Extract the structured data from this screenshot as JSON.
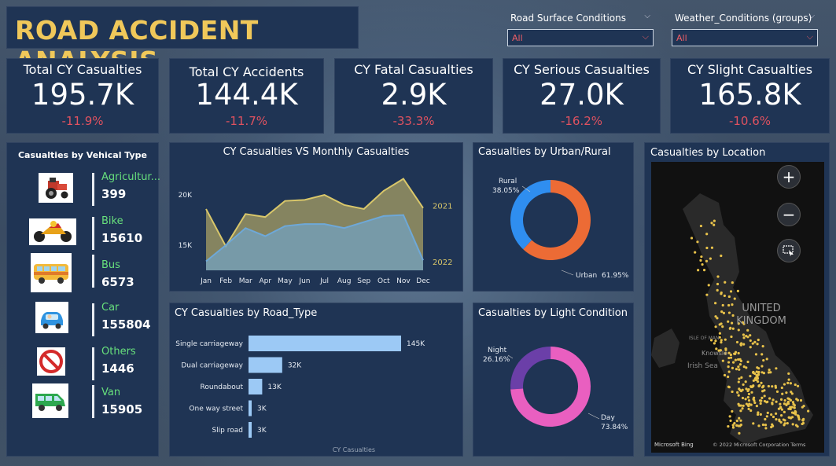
{
  "header": {
    "title": "ROAD ACCIDENT ANALYSIS"
  },
  "filters": [
    {
      "label": "Road Surface Conditions",
      "value": "All"
    },
    {
      "label": "Weather_Conditions (groups)",
      "value": "All"
    }
  ],
  "kpis": [
    {
      "title": "Total CY Casualties",
      "value": "195.7K",
      "delta": "-11.9%"
    },
    {
      "title": "Total CY Accidents",
      "value": "144.4K",
      "delta": "-11.7%"
    },
    {
      "title": "CY Fatal Casualties",
      "value": "2.9K",
      "delta": "-33.3%"
    },
    {
      "title": "CY Serious Casualties",
      "value": "27.0K",
      "delta": "-16.2%"
    },
    {
      "title": "CY Slight Casualties",
      "value": "165.8K",
      "delta": "-10.6%"
    }
  ],
  "vehicles": {
    "title": "Casualties by Vehical Type",
    "items": [
      {
        "name": "Agricultur...",
        "value": "399",
        "icon": "tractor-icon"
      },
      {
        "name": "Bike",
        "value": "15610",
        "icon": "motorbike-icon"
      },
      {
        "name": "Bus",
        "value": "6573",
        "icon": "bus-icon"
      },
      {
        "name": "Car",
        "value": "155804",
        "icon": "car-icon"
      },
      {
        "name": "Others",
        "value": "1446",
        "icon": "no-entry-icon"
      },
      {
        "name": "Van",
        "value": "15905",
        "icon": "van-icon"
      }
    ]
  },
  "map": {
    "title": "Casualties by Location",
    "labels": {
      "country": "UNITED KINGDOM",
      "sea_irish": "Irish Sea",
      "isle_of_man": "ISLE OF MAN",
      "knowsley": "Knowsle",
      "attribution": "© 2022 Microsoft Corporation  Terms",
      "brand": "Microsoft Bing"
    },
    "controls": {
      "zoom_in": "+",
      "zoom_out": "−"
    }
  },
  "chart_data": [
    {
      "type": "area",
      "title": "CY Casualties VS Monthly Casualties",
      "categories": [
        "Jan",
        "Feb",
        "Mar",
        "Apr",
        "May",
        "Jun",
        "Jul",
        "Aug",
        "Sep",
        "Oct",
        "Nov",
        "Dec"
      ],
      "series": [
        {
          "name": "2021",
          "color": "#d9c76a",
          "values": [
            18600,
            14900,
            18100,
            17800,
            19400,
            19500,
            20000,
            19000,
            18600,
            20400,
            21600,
            18700
          ]
        },
        {
          "name": "2022",
          "color": "#6ea8d8",
          "values": [
            13400,
            15000,
            16700,
            15900,
            16900,
            17100,
            17100,
            16700,
            17300,
            17900,
            18000,
            13500
          ]
        }
      ],
      "yticks": [
        "15K",
        "20K"
      ],
      "ytick_values": [
        15000,
        20000
      ],
      "ylim": [
        12500,
        22500
      ]
    },
    {
      "type": "bar",
      "orientation": "horizontal",
      "title": "CY Casualties by Road_Type",
      "xlabel": "CY Casualties",
      "categories": [
        "Single carriageway",
        "Dual carriageway",
        "Roundabout",
        "One way street",
        "Slip road"
      ],
      "values": [
        145000,
        32000,
        13000,
        3000,
        3000
      ],
      "data_labels": [
        "145K",
        "32K",
        "13K",
        "3K",
        "3K"
      ],
      "color": "#9cc9f5"
    },
    {
      "type": "pie",
      "donut": true,
      "title": "Casualties by Urban/Rural",
      "slices": [
        {
          "label": "Rural",
          "pct": "38.05%",
          "value": 38.05,
          "color": "#2f8ef0"
        },
        {
          "label": "Urban",
          "pct": "61.95%",
          "value": 61.95,
          "color": "#ec6b35"
        }
      ]
    },
    {
      "type": "pie",
      "donut": true,
      "title": "Casualties by Light Condition",
      "slices": [
        {
          "label": "Night",
          "pct": "26.16%",
          "value": 26.16,
          "color": "#6b3fa8"
        },
        {
          "label": "Day",
          "pct": "73.84%",
          "value": 73.84,
          "color": "#e95fc0"
        }
      ]
    }
  ]
}
